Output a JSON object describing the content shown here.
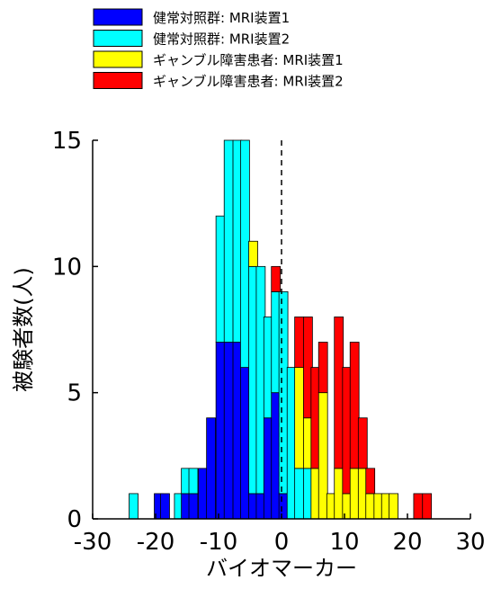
{
  "chart_data": {
    "type": "bar",
    "stacked": true,
    "xlabel": "バイオマーカー",
    "ylabel": "被験者数(人)",
    "xlim": [
      -30,
      30
    ],
    "ylim": [
      0,
      15
    ],
    "xticks": [
      "-30",
      "-20",
      "-10",
      "0",
      "10",
      "20",
      "30"
    ],
    "yticks": [
      "0",
      "5",
      "10",
      "15"
    ],
    "bin_width": 1.42,
    "reference_line_x": 0,
    "legend_position": "top-left",
    "x": [
      -23.5,
      -19.5,
      -18.5,
      -16.3,
      -15.2,
      -14.0,
      -12.5,
      -11.2,
      -9.7,
      -8.4,
      -7.0,
      -5.8,
      -4.5,
      -3.3,
      -2.1,
      -0.9,
      0.3,
      1.6,
      2.8,
      4.2,
      5.4,
      6.6,
      7.9,
      9.1,
      10.4,
      11.6,
      12.9,
      14.1,
      15.4,
      16.6,
      17.8,
      21.7,
      23.1
    ],
    "series": [
      {
        "name": "健常対照群: MRI装置1",
        "color": "#0000ff",
        "values": [
          0,
          1,
          1,
          0,
          1,
          1,
          2,
          4,
          7,
          7,
          7,
          6,
          1,
          1,
          4,
          5,
          1,
          0,
          0,
          0,
          0,
          0,
          0,
          0,
          0,
          0,
          0,
          0,
          0,
          0,
          0,
          0,
          0
        ]
      },
      {
        "name": "健常対照群: MRI装置2",
        "color": "#00ffff",
        "values": [
          1,
          0,
          0,
          1,
          1,
          1,
          0,
          0,
          5,
          8,
          8,
          9,
          9,
          9,
          4,
          4,
          8,
          6,
          2,
          2,
          0,
          0,
          0,
          0,
          0,
          0,
          0,
          0,
          0,
          0,
          0,
          0,
          0
        ]
      },
      {
        "name": "ギャンブル障害患者: MRI装置1",
        "color": "#ffff00",
        "values": [
          0,
          0,
          0,
          0,
          0,
          0,
          0,
          0,
          0,
          0,
          0,
          0,
          1,
          0,
          0,
          0,
          0,
          0,
          4,
          2,
          2,
          5,
          1,
          2,
          1,
          2,
          2,
          1,
          1,
          1,
          1,
          0,
          0
        ]
      },
      {
        "name": "ギャンブル障害患者: MRI装置2",
        "color": "#ff0000",
        "values": [
          0,
          0,
          0,
          0,
          0,
          0,
          0,
          0,
          0,
          0,
          0,
          0,
          0,
          0,
          0,
          1,
          0,
          0,
          2,
          4,
          4,
          2,
          0,
          6,
          5,
          5,
          2,
          1,
          0,
          0,
          0,
          1,
          1
        ]
      }
    ]
  }
}
